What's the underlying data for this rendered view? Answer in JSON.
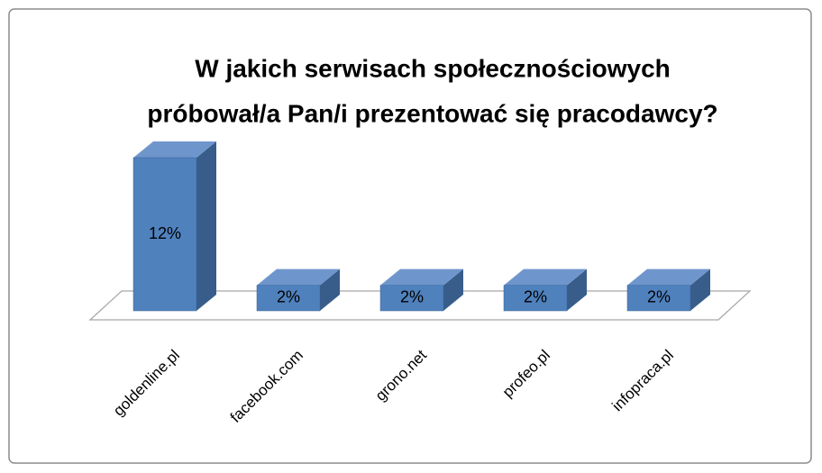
{
  "chart_data": {
    "type": "bar",
    "title": [
      "W jakich serwisach społecznościowych",
      "próbował/a Pan/i prezentować się pracodawcy?"
    ],
    "categories": [
      "goldenline.pl",
      "facebook.com",
      "grono.net",
      "profeo.pl",
      "infopraca.pl"
    ],
    "values": [
      12,
      2,
      2,
      2,
      2
    ],
    "value_labels": [
      "12%",
      "2%",
      "2%",
      "2%",
      "2%"
    ],
    "color": "#4f81bd"
  }
}
